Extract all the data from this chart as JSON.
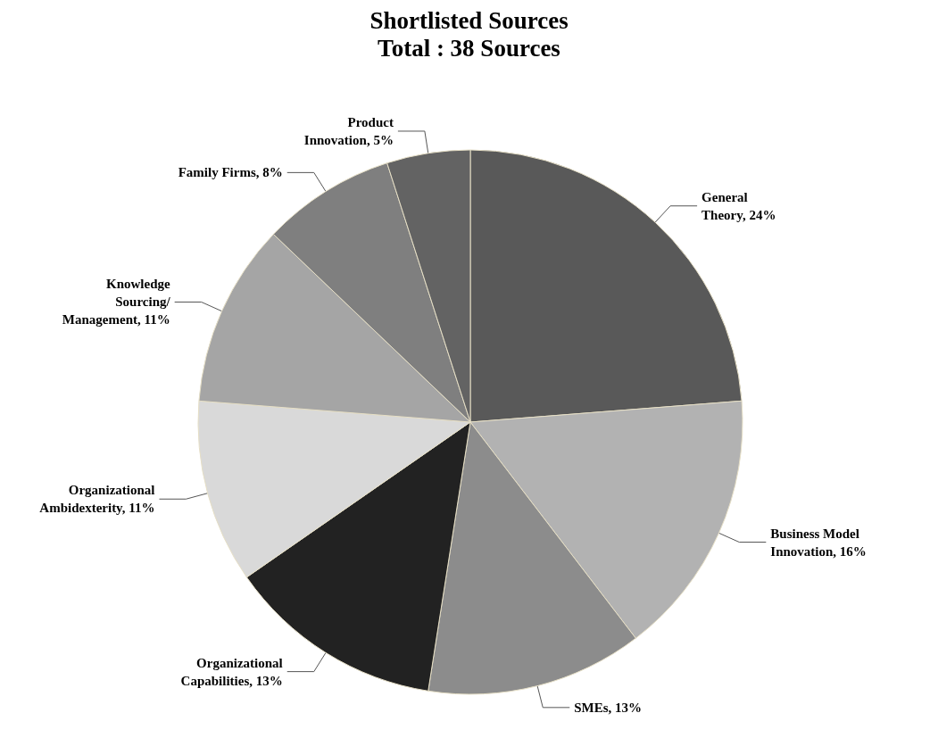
{
  "chart_data": {
    "type": "pie",
    "title": "Shortlisted Sources",
    "subtitle": "Total : 38 Sources",
    "categories": [
      "General Theory",
      "Business Model Innovation",
      "SMEs",
      "Organizational Capabilities",
      "Organizational Ambidexterity",
      "Knowledge Sourcing/Management",
      "Family Firms",
      "Product Innovation"
    ],
    "values": [
      24,
      16,
      13,
      13,
      11,
      11,
      8,
      5
    ],
    "value_labels": [
      "24%",
      "16%",
      "13%",
      "13%",
      "11%",
      "11%",
      "8%",
      "5%"
    ],
    "colors": [
      "#595959",
      "#b2b2b2",
      "#8c8c8c",
      "#222222",
      "#d9d9d9",
      "#a5a5a5",
      "#7f7f7f",
      "#636363"
    ],
    "legend": false
  }
}
